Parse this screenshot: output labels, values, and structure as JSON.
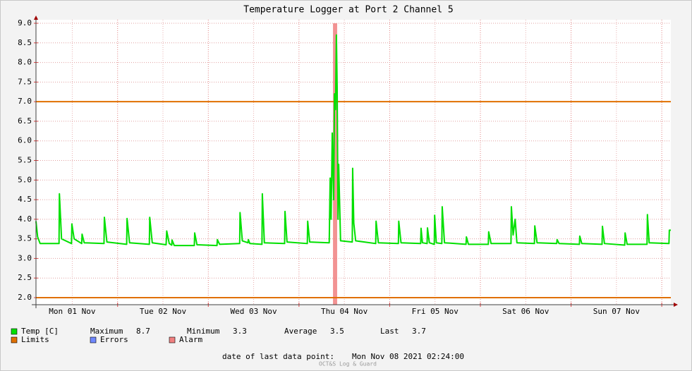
{
  "chart_data": {
    "type": "line",
    "title": "Temperature Logger at Port 2 Channel 5",
    "xlim": [
      "2021-11-01 02:24",
      "2021-11-08 02:24"
    ],
    "xticks": [
      {
        "value": "2021-11-01 12:00",
        "label": "Mon 01 Nov"
      },
      {
        "value": "2021-11-02 12:00",
        "label": "Tue 02 Nov"
      },
      {
        "value": "2021-11-03 12:00",
        "label": "Wed 03 Nov"
      },
      {
        "value": "2021-11-04 12:00",
        "label": "Thu 04 Nov"
      },
      {
        "value": "2021-11-05 12:00",
        "label": "Fri 05 Nov"
      },
      {
        "value": "2021-11-06 12:00",
        "label": "Sat 06 Nov"
      },
      {
        "value": "2021-11-07 12:00",
        "label": "Sun 07 Nov"
      }
    ],
    "xgrid_major": [
      "2021-11-02 00:00",
      "2021-11-03 00:00",
      "2021-11-04 00:00",
      "2021-11-05 00:00",
      "2021-11-06 00:00",
      "2021-11-07 00:00",
      "2021-11-08 00:00"
    ],
    "ylim": [
      1.82,
      9.09
    ],
    "yticks": [
      {
        "value": 2,
        "label": "2.0"
      },
      {
        "value": 2.5,
        "label": "2.5"
      },
      {
        "value": 3,
        "label": "3.0"
      },
      {
        "value": 3.5,
        "label": "3.5"
      },
      {
        "value": 4,
        "label": "4.0"
      },
      {
        "value": 4.5,
        "label": "4.5"
      },
      {
        "value": 5,
        "label": "5.0"
      },
      {
        "value": 5.5,
        "label": "5.5"
      },
      {
        "value": 6,
        "label": "6.0"
      },
      {
        "value": 6.5,
        "label": "6.5"
      },
      {
        "value": 7,
        "label": "7.0"
      },
      {
        "value": 7.5,
        "label": "7.5"
      },
      {
        "value": 8,
        "label": "8.0"
      },
      {
        "value": 8.5,
        "label": "8.5"
      },
      {
        "value": 9,
        "label": "9.0"
      }
    ],
    "grid": true,
    "series": [
      {
        "name": "Temp [C]",
        "color": "#00e000",
        "x": [
          "2021-11-01 02:24",
          "2021-11-01 02:50",
          "2021-11-01 03:30",
          "2021-11-01 08:30",
          "2021-11-01 08:36",
          "2021-11-01 09:10",
          "2021-11-01 11:48",
          "2021-11-01 11:54",
          "2021-11-01 12:30",
          "2021-11-01 14:30",
          "2021-11-01 14:36",
          "2021-11-01 15:10",
          "2021-11-01 20:24",
          "2021-11-01 20:30",
          "2021-11-01 21:10",
          "2021-11-02 02:24",
          "2021-11-02 02:30",
          "2021-11-02 03:10",
          "2021-11-02 08:24",
          "2021-11-02 08:30",
          "2021-11-02 09:10",
          "2021-11-02 12:50",
          "2021-11-02 13:00",
          "2021-11-02 13:40",
          "2021-11-02 14:20",
          "2021-11-02 14:24",
          "2021-11-02 15:00",
          "2021-11-02 20:18",
          "2021-11-02 20:24",
          "2021-11-02 21:00",
          "2021-11-03 02:18",
          "2021-11-03 02:24",
          "2021-11-03 03:00",
          "2021-11-03 08:18",
          "2021-11-03 08:24",
          "2021-11-03 09:00",
          "2021-11-03 10:30",
          "2021-11-03 10:36",
          "2021-11-03 11:00",
          "2021-11-03 14:12",
          "2021-11-03 14:18",
          "2021-11-03 14:50",
          "2021-11-03 20:12",
          "2021-11-03 20:18",
          "2021-11-03 20:50",
          "2021-11-04 02:12",
          "2021-11-04 02:18",
          "2021-11-04 02:50",
          "2021-11-04 08:00",
          "2021-11-04 08:15",
          "2021-11-04 08:30",
          "2021-11-04 08:48",
          "2021-11-04 09:10",
          "2021-11-04 09:24",
          "2021-11-04 09:40",
          "2021-11-04 09:54",
          "2021-11-04 10:06",
          "2021-11-04 10:20",
          "2021-11-04 10:30",
          "2021-11-04 11:00",
          "2021-11-04 14:06",
          "2021-11-04 14:12",
          "2021-11-04 14:30",
          "2021-11-04 15:00",
          "2021-11-04 20:18",
          "2021-11-04 20:24",
          "2021-11-04 21:00",
          "2021-11-05 02:18",
          "2021-11-05 02:24",
          "2021-11-05 03:00",
          "2021-11-05 08:12",
          "2021-11-05 08:18",
          "2021-11-05 08:40",
          "2021-11-05 09:54",
          "2021-11-05 10:00",
          "2021-11-05 10:30",
          "2021-11-05 11:48",
          "2021-11-05 11:54",
          "2021-11-05 12:20",
          "2021-11-05 13:48",
          "2021-11-05 13:54",
          "2021-11-05 14:30",
          "2021-11-05 20:12",
          "2021-11-05 20:18",
          "2021-11-05 20:50",
          "2021-11-06 02:06",
          "2021-11-06 02:12",
          "2021-11-06 02:50",
          "2021-11-06 08:06",
          "2021-11-06 08:12",
          "2021-11-06 08:40",
          "2021-11-06 09:12",
          "2021-11-06 09:40",
          "2021-11-06 14:18",
          "2021-11-06 14:24",
          "2021-11-06 15:00",
          "2021-11-06 20:12",
          "2021-11-06 20:18",
          "2021-11-06 20:50",
          "2021-11-07 02:12",
          "2021-11-07 02:18",
          "2021-11-07 02:50",
          "2021-11-07 08:12",
          "2021-11-07 08:18",
          "2021-11-07 08:50",
          "2021-11-07 14:12",
          "2021-11-07 14:18",
          "2021-11-07 14:50",
          "2021-11-07 20:06",
          "2021-11-07 20:12",
          "2021-11-07 20:40",
          "2021-11-08 01:54",
          "2021-11-08 02:00",
          "2021-11-08 02:24"
        ],
        "values": [
          3.95,
          3.55,
          3.38,
          3.38,
          4.65,
          3.5,
          3.38,
          3.88,
          3.5,
          3.38,
          3.62,
          3.4,
          3.38,
          4.05,
          3.42,
          3.36,
          4.02,
          3.4,
          3.36,
          4.05,
          3.4,
          3.35,
          3.7,
          3.38,
          3.34,
          3.47,
          3.33,
          3.33,
          3.65,
          3.35,
          3.33,
          3.48,
          3.36,
          3.38,
          4.17,
          3.45,
          3.4,
          3.48,
          3.38,
          3.36,
          4.65,
          3.4,
          3.38,
          4.2,
          3.42,
          3.38,
          3.95,
          3.42,
          3.4,
          5.05,
          4.0,
          6.2,
          4.5,
          7.2,
          6.8,
          8.7,
          7.35,
          4.0,
          5.4,
          3.45,
          3.42,
          5.3,
          3.9,
          3.45,
          3.38,
          3.95,
          3.4,
          3.38,
          3.95,
          3.4,
          3.38,
          3.77,
          3.4,
          3.38,
          3.78,
          3.4,
          3.36,
          4.1,
          3.4,
          3.38,
          4.32,
          3.4,
          3.36,
          3.55,
          3.36,
          3.36,
          3.68,
          3.38,
          3.38,
          4.32,
          3.6,
          4.0,
          3.4,
          3.38,
          3.83,
          3.4,
          3.38,
          3.48,
          3.38,
          3.36,
          3.57,
          3.38,
          3.36,
          3.82,
          3.38,
          3.34,
          3.65,
          3.36,
          3.36,
          4.12,
          3.4,
          3.38,
          3.72,
          3.72
        ]
      }
    ],
    "limits": {
      "name": "Limits",
      "color": "#e07000",
      "values": [
        7,
        2
      ]
    },
    "errors": {
      "name": "Errors",
      "color": "#7088ff"
    },
    "alarm": {
      "name": "Alarm",
      "color": "#f08080",
      "periods": [
        [
          "2021-11-04 09:00",
          "2021-11-04 10:06"
        ]
      ]
    },
    "stats": [
      {
        "label": "Maximum",
        "value": 8.7
      },
      {
        "label": "Minimum",
        "value": 3.3
      },
      {
        "label": "Average",
        "value": 3.5
      },
      {
        "label": "Last",
        "value": 3.7
      }
    ],
    "last_data_point": {
      "label": "date of last data point:",
      "value": "Mon Nov 08 2021 02:24:00"
    },
    "footer": "OCT&S Log & Guard"
  }
}
